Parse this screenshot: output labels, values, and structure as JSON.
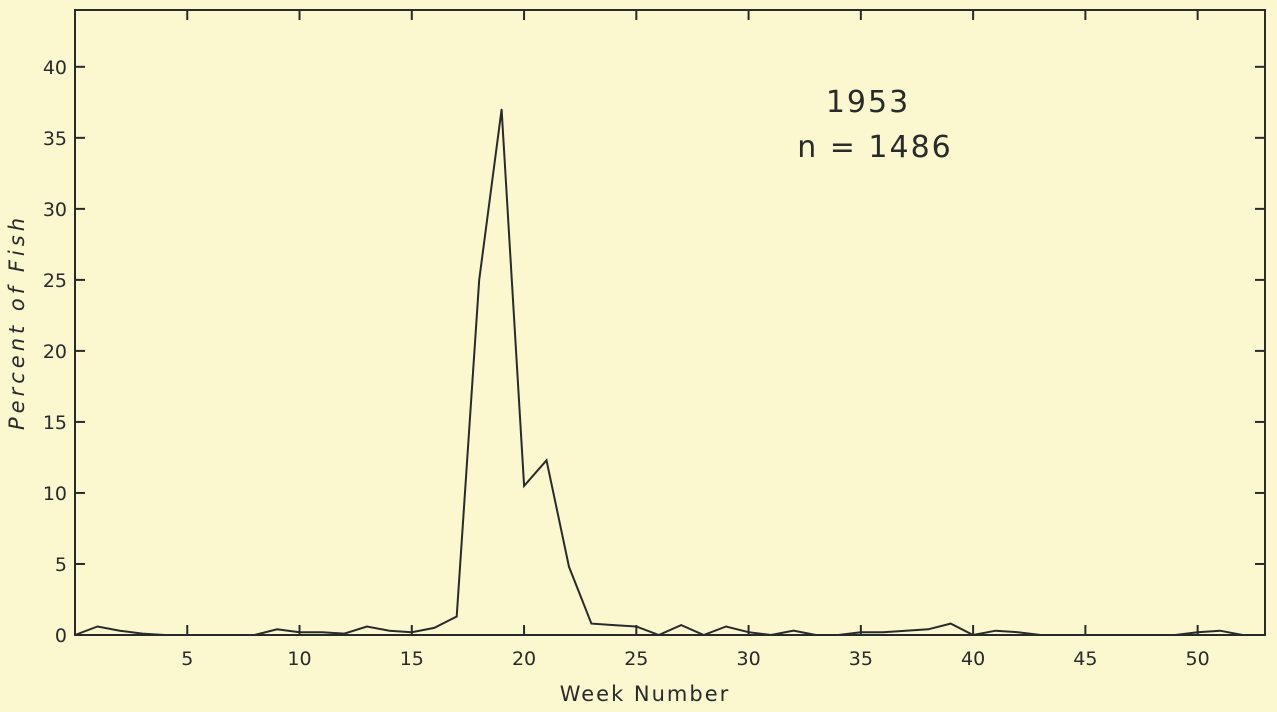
{
  "chart_data": {
    "type": "line",
    "xlabel": "Week Number",
    "ylabel": "Percent of Fish",
    "xlim": [
      0,
      53
    ],
    "ylim": [
      0,
      44
    ],
    "x_ticks": [
      5,
      10,
      15,
      20,
      25,
      30,
      35,
      40,
      45,
      50
    ],
    "y_ticks": [
      0,
      5,
      10,
      15,
      20,
      25,
      30,
      35,
      40
    ],
    "grid": false,
    "annotations": [
      "1953",
      "n = 1486"
    ],
    "series": [
      {
        "x": [
          0,
          1,
          2,
          3,
          4,
          5,
          6,
          7,
          8,
          9,
          10,
          11,
          12,
          13,
          14,
          15,
          16,
          17,
          18,
          19,
          20,
          21,
          22,
          23,
          24,
          25,
          26,
          27,
          28,
          29,
          30,
          31,
          32,
          33,
          34,
          35,
          36,
          37,
          38,
          39,
          40,
          41,
          42,
          43,
          44,
          45,
          46,
          47,
          48,
          49,
          50,
          51,
          52
        ],
        "y": [
          0,
          0.6,
          0.3,
          0.1,
          0,
          0,
          0,
          0,
          0,
          0.4,
          0.2,
          0.2,
          0.1,
          0.6,
          0.3,
          0.2,
          0.5,
          1.3,
          25,
          37,
          10.5,
          12.3,
          4.8,
          0.8,
          0.7,
          0.6,
          0,
          0.7,
          0,
          0.6,
          0.2,
          0,
          0.3,
          0,
          0,
          0.2,
          0.2,
          0.3,
          0.4,
          0.8,
          0,
          0.3,
          0.2,
          0,
          0,
          0,
          0,
          0,
          0,
          0,
          0.2,
          0.3,
          0
        ]
      }
    ]
  }
}
